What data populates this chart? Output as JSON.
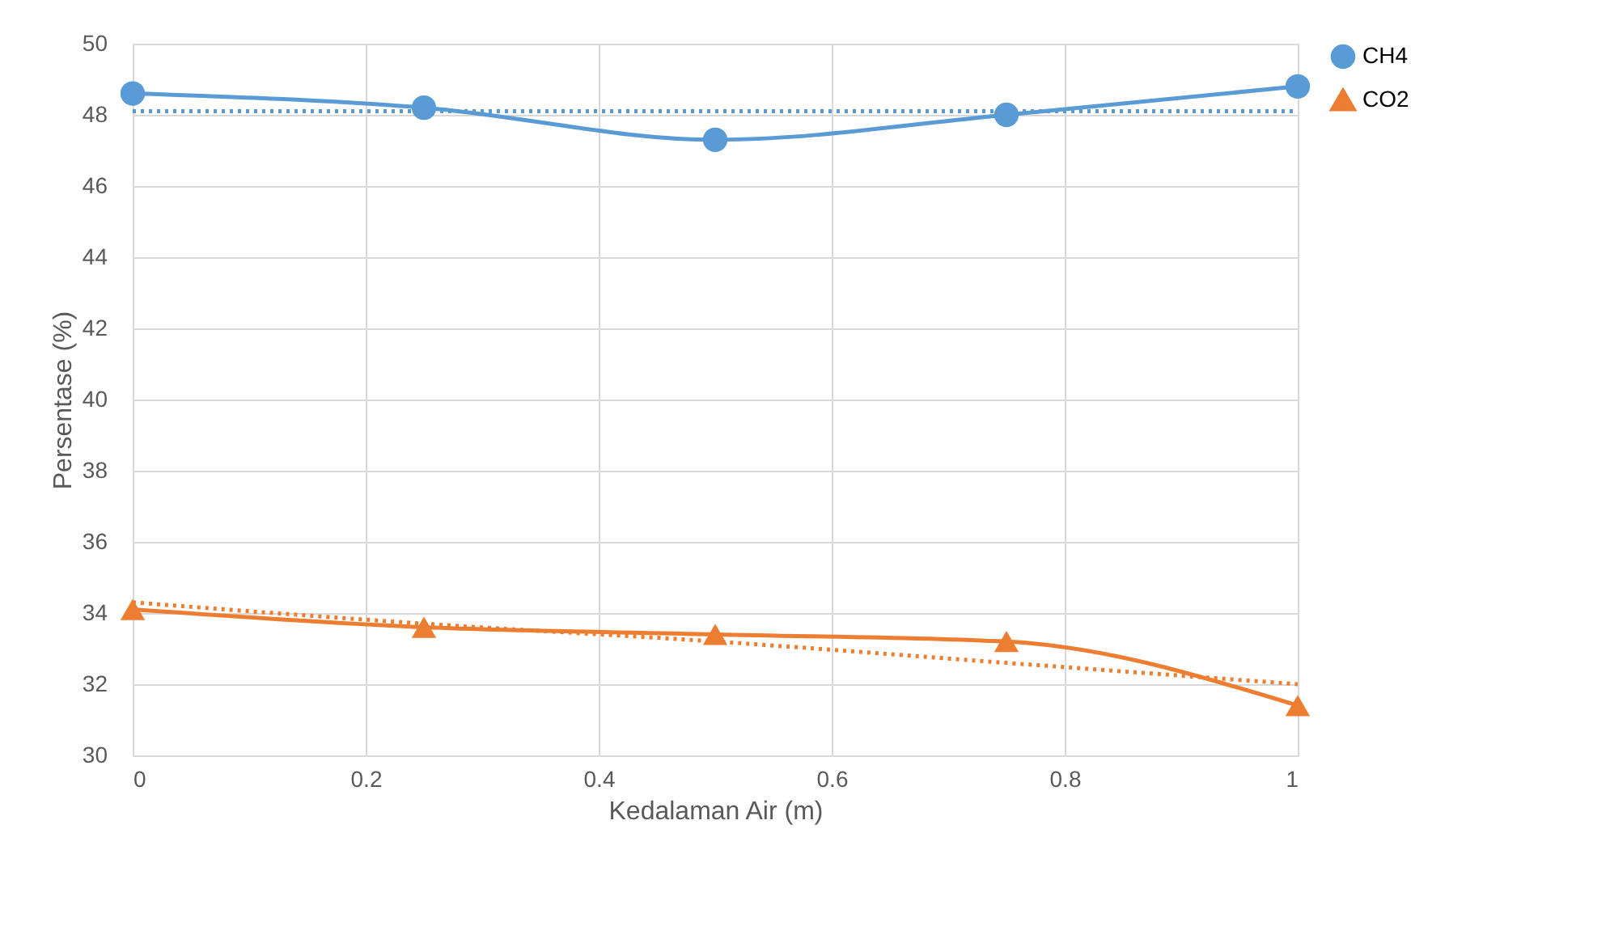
{
  "chart_data": {
    "type": "line",
    "xlabel": "Kedalaman Air (m)",
    "ylabel": "Persentase (%)",
    "x": [
      0,
      0.25,
      0.5,
      0.75,
      1
    ],
    "series": [
      {
        "name": "CH4",
        "color": "#5b9bd5",
        "marker": "circle",
        "line_style": "solid",
        "values": [
          48.6,
          48.2,
          47.3,
          48.0,
          48.8
        ]
      },
      {
        "name": "CO2",
        "color": "#ed7d31",
        "marker": "triangle",
        "line_style": "solid",
        "values": [
          34.1,
          33.6,
          33.4,
          33.2,
          31.4
        ]
      },
      {
        "type": "line",
        "color": "#5b9bd5",
        "marker": "none",
        "line_style": "dotted",
        "values": [
          48.1,
          48.1,
          48.1,
          48.1,
          48.1
        ]
      },
      {
        "type": "line",
        "color": "#ed7d31",
        "marker": "none",
        "line_style": "dotted",
        "values": [
          34.3,
          33.7,
          33.2,
          32.6,
          32.0
        ]
      }
    ],
    "xlim": [
      0,
      1
    ],
    "xticks": [
      0,
      0.2,
      0.4,
      0.6,
      0.8,
      1
    ],
    "ylim": [
      30,
      50
    ],
    "yticks": [
      30,
      32,
      34,
      36,
      38,
      40,
      42,
      44,
      46,
      48,
      50
    ],
    "grid": true,
    "legend": "right"
  }
}
